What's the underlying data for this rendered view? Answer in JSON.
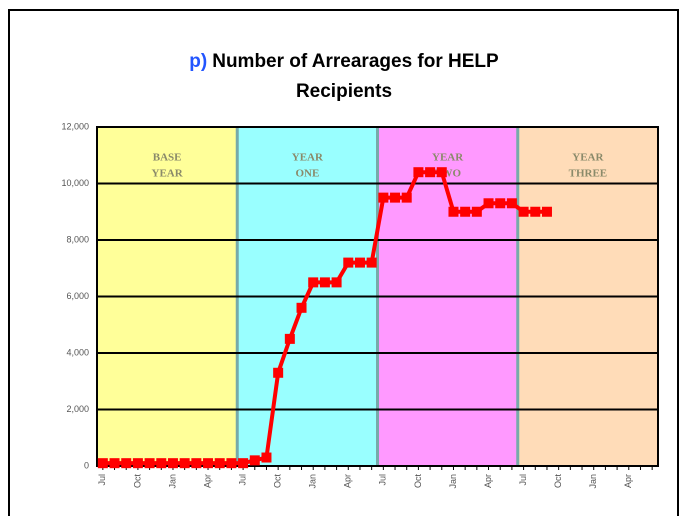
{
  "chart_data": {
    "type": "line",
    "title_prefix": "p)",
    "title_prefix_color": "#2255ff",
    "title_lines": [
      "Number of Arrearages for HELP",
      "Recipients"
    ],
    "regions": [
      {
        "lines": [
          "BASE",
          "YEAR"
        ],
        "color": "#ffff99"
      },
      {
        "lines": [
          "YEAR",
          "ONE"
        ],
        "color": "#99ffff"
      },
      {
        "lines": [
          "YEAR",
          "TWO"
        ],
        "color": "#ff99ff"
      },
      {
        "lines": [
          "YEAR",
          "THREE"
        ],
        "color": "#ffdcb8"
      }
    ],
    "categories": [
      "Jul",
      null,
      null,
      "Oct",
      null,
      null,
      "Jan",
      null,
      null,
      "Apr",
      null,
      null,
      "Jul",
      null,
      null,
      "Oct",
      null,
      null,
      "Jan",
      null,
      null,
      "Apr",
      null,
      null,
      "Jul",
      null,
      null,
      "Oct",
      null,
      null,
      "Jan",
      null,
      null,
      "Apr",
      null,
      null,
      "Jul",
      null,
      null,
      "Oct",
      null,
      null,
      "Jan",
      null,
      null,
      "Apr",
      null,
      null
    ],
    "series": [
      {
        "name": "Arrearages",
        "color": "#ff0000",
        "values": [
          100,
          100,
          100,
          100,
          100,
          100,
          100,
          100,
          100,
          100,
          100,
          100,
          100,
          200,
          300,
          3300,
          4500,
          5600,
          6500,
          6500,
          6500,
          7200,
          7200,
          7200,
          9500,
          9500,
          9500,
          10400,
          10400,
          10400,
          9000,
          9000,
          9000,
          9300,
          9300,
          9300,
          9000,
          9000,
          9000,
          null,
          null,
          null,
          null,
          null,
          null,
          null,
          null,
          null
        ]
      }
    ],
    "ylim": [
      0,
      12000
    ],
    "yticks": [
      0,
      {
        "value": 2000,
        "label": "2,000"
      },
      {
        "value": 4000,
        "label": "4,000"
      },
      {
        "value": 6000,
        "label": "6,000"
      },
      {
        "value": 8000,
        "label": "8,000"
      },
      {
        "value": 10000,
        "label": "10,000"
      },
      {
        "value": 12000,
        "label": "12,000"
      }
    ],
    "grid": true
  }
}
